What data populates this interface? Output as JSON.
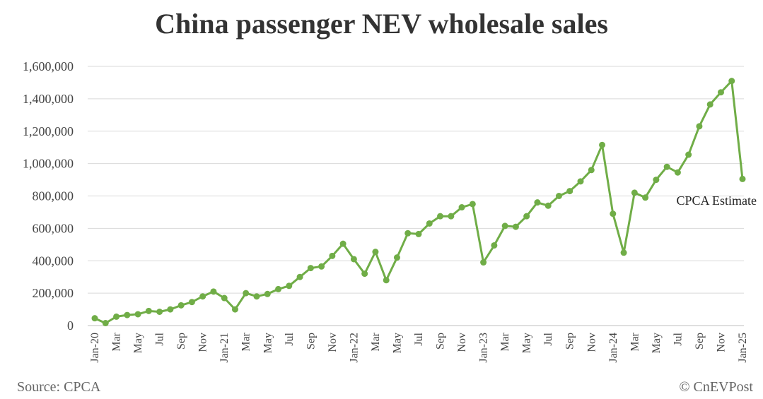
{
  "chart_data": {
    "type": "line",
    "title": "China passenger NEV wholesale sales",
    "source": "Source: CPCA",
    "credit": "© CnEVPost",
    "annotation": "CPCA Estimate",
    "line_color": "#70ad47",
    "grid": true,
    "ylim": [
      0,
      1600000
    ],
    "yticks": [
      "0",
      "200,000",
      "400,000",
      "600,000",
      "800,000",
      "1,000,000",
      "1,200,000",
      "1,400,000",
      "1,600,000"
    ],
    "x": [
      "Jan-20",
      "Feb-20",
      "Mar",
      "Apr-20",
      "May",
      "Jun-20",
      "Jul",
      "Aug-20",
      "Sep",
      "Oct-20",
      "Nov",
      "Dec-20",
      "Jan-21",
      "Feb-21",
      "Mar",
      "Apr-21",
      "May",
      "Jun-21",
      "Jul",
      "Aug-21",
      "Sep",
      "Oct-21",
      "Nov",
      "Dec-21",
      "Jan-22",
      "Feb-22",
      "Mar",
      "Apr-22",
      "May",
      "Jun-22",
      "Jul",
      "Aug-22",
      "Sep",
      "Oct-22",
      "Nov",
      "Dec-22",
      "Jan-23",
      "Feb-23",
      "Mar",
      "Apr-23",
      "May",
      "Jun-23",
      "Jul",
      "Aug-23",
      "Sep",
      "Oct-23",
      "Nov",
      "Dec-23",
      "Jan-24",
      "Feb-24",
      "Mar",
      "Apr-24",
      "May",
      "Jun-24",
      "Jul",
      "Aug-24",
      "Sep",
      "Oct-24",
      "Nov",
      "Dec-24",
      "Jan-25"
    ],
    "xtick_labels": [
      "Jan-20",
      "",
      "Mar",
      "",
      "May",
      "",
      "Jul",
      "",
      "Sep",
      "",
      "Nov",
      "",
      "Jan-21",
      "",
      "Mar",
      "",
      "May",
      "",
      "Jul",
      "",
      "Sep",
      "",
      "Nov",
      "",
      "Jan-22",
      "",
      "Mar",
      "",
      "May",
      "",
      "Jul",
      "",
      "Sep",
      "",
      "Nov",
      "",
      "Jan-23",
      "",
      "Mar",
      "",
      "May",
      "",
      "Jul",
      "",
      "Sep",
      "",
      "Nov",
      "",
      "Jan-24",
      "",
      "Mar",
      "",
      "May",
      "",
      "Jul",
      "",
      "Sep",
      "",
      "Nov",
      "",
      "Jan-25"
    ],
    "series": [
      {
        "values": [
          45000,
          15000,
          55000,
          65000,
          70000,
          90000,
          85000,
          100000,
          125000,
          145000,
          180000,
          210000,
          170000,
          100000,
          200000,
          180000,
          195000,
          225000,
          245000,
          300000,
          355000,
          365000,
          430000,
          505000,
          410000,
          320000,
          455000,
          280000,
          420000,
          570000,
          565000,
          630000,
          675000,
          675000,
          730000,
          750000,
          390000,
          495000,
          615000,
          610000,
          675000,
          760000,
          740000,
          800000,
          830000,
          890000,
          960000,
          1115000,
          690000,
          450000,
          820000,
          790000,
          900000,
          980000,
          945000,
          1055000,
          1230000,
          1365000,
          1440000,
          1510000,
          905000
        ]
      }
    ]
  }
}
